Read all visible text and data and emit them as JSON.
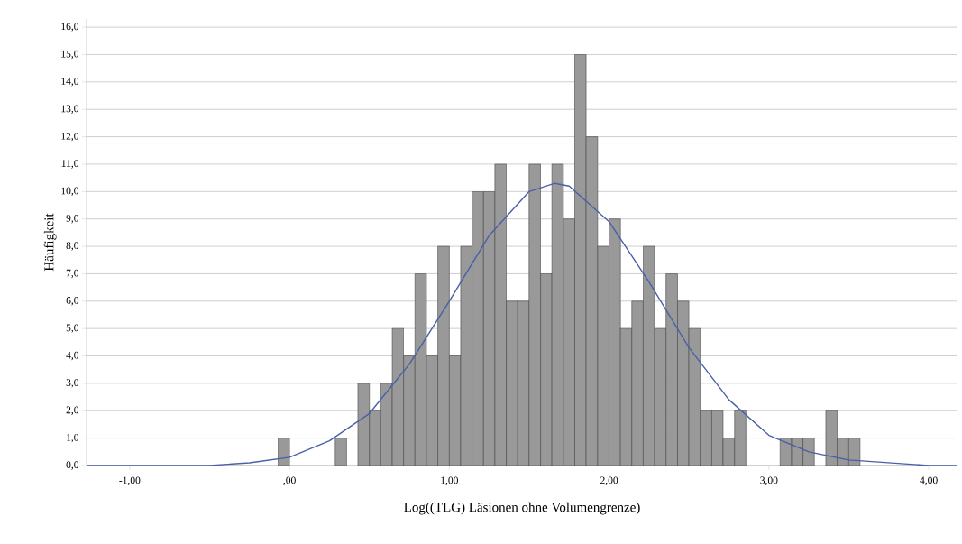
{
  "chart_data": {
    "type": "histogram",
    "xlabel": "Log((TLG) Läsionen ohne Volumengrenze)",
    "ylabel": "Häufigkeit",
    "bins": [
      -0.071,
      0,
      0.071,
      0.143,
      0.214,
      0.286,
      0.357,
      0.428,
      0.5,
      0.571,
      0.643,
      0.714,
      0.785,
      0.857,
      0.928,
      1.0,
      1.071,
      1.142,
      1.214,
      1.285,
      1.357,
      1.428,
      1.499,
      1.571,
      1.642,
      1.714,
      1.785,
      1.856,
      1.928,
      1.999,
      2.071,
      2.142,
      2.213,
      2.285,
      2.356,
      2.428,
      2.499,
      2.57,
      2.642,
      2.713,
      2.785,
      2.856,
      2.927,
      2.999,
      3.07,
      3.142,
      3.213,
      3.284,
      3.356,
      3.427,
      3.499,
      3.57
    ],
    "values": [
      1,
      0,
      0,
      0,
      0,
      1,
      0,
      3,
      2,
      3,
      5,
      4,
      7,
      4,
      8,
      4,
      8,
      10,
      10,
      11,
      6,
      6,
      11,
      7,
      11,
      9,
      15,
      12,
      8,
      9,
      5,
      6,
      8,
      5,
      7,
      6,
      5,
      2,
      2,
      1,
      2,
      0,
      0,
      0,
      1,
      1,
      1,
      0,
      2,
      1,
      1
    ],
    "color": "#999999",
    "series": [
      {
        "type": "line",
        "color": "#4a5fa8",
        "x": [
          -1.27,
          -1,
          -0.5,
          -0.25,
          0,
          0.25,
          0.5,
          0.75,
          1,
          1.25,
          1.5,
          1.66,
          1.75,
          2,
          2.25,
          2.5,
          2.75,
          3,
          3.25,
          3.5,
          4,
          4.18
        ],
        "values": [
          0.0,
          0.0,
          0.0,
          0.1,
          0.3,
          0.9,
          1.9,
          3.7,
          6.0,
          8.4,
          10.0,
          10.3,
          10.2,
          8.9,
          6.7,
          4.3,
          2.4,
          1.1,
          0.5,
          0.2,
          0.0,
          0.0
        ]
      }
    ],
    "xlim": [
      -1.27,
      4.18
    ],
    "ylim": [
      0,
      16.3
    ],
    "xticks": [
      {
        "value": -1,
        "label": "-1,00"
      },
      {
        "value": 0,
        "label": ",00"
      },
      {
        "value": 1,
        "label": "1,00"
      },
      {
        "value": 2,
        "label": "2,00"
      },
      {
        "value": 3,
        "label": "3,00"
      },
      {
        "value": 4,
        "label": "4,00"
      }
    ],
    "yticks": [
      {
        "value": 0,
        "label": "0,0"
      },
      {
        "value": 1,
        "label": "1,0"
      },
      {
        "value": 2,
        "label": "2,0"
      },
      {
        "value": 3,
        "label": "3,0"
      },
      {
        "value": 4,
        "label": "4,0"
      },
      {
        "value": 5,
        "label": "5,0"
      },
      {
        "value": 6,
        "label": "6,0"
      },
      {
        "value": 7,
        "label": "7,0"
      },
      {
        "value": 8,
        "label": "8,0"
      },
      {
        "value": 9,
        "label": "9,0"
      },
      {
        "value": 10,
        "label": "10,0"
      },
      {
        "value": 11,
        "label": "11,0"
      },
      {
        "value": 12,
        "label": "12,0"
      },
      {
        "value": 13,
        "label": "13,0"
      },
      {
        "value": 14,
        "label": "14,0"
      },
      {
        "value": 15,
        "label": "15,0"
      },
      {
        "value": 16,
        "label": "16,0"
      }
    ],
    "grid": "y",
    "marker": "none",
    "line_style": "solid"
  }
}
